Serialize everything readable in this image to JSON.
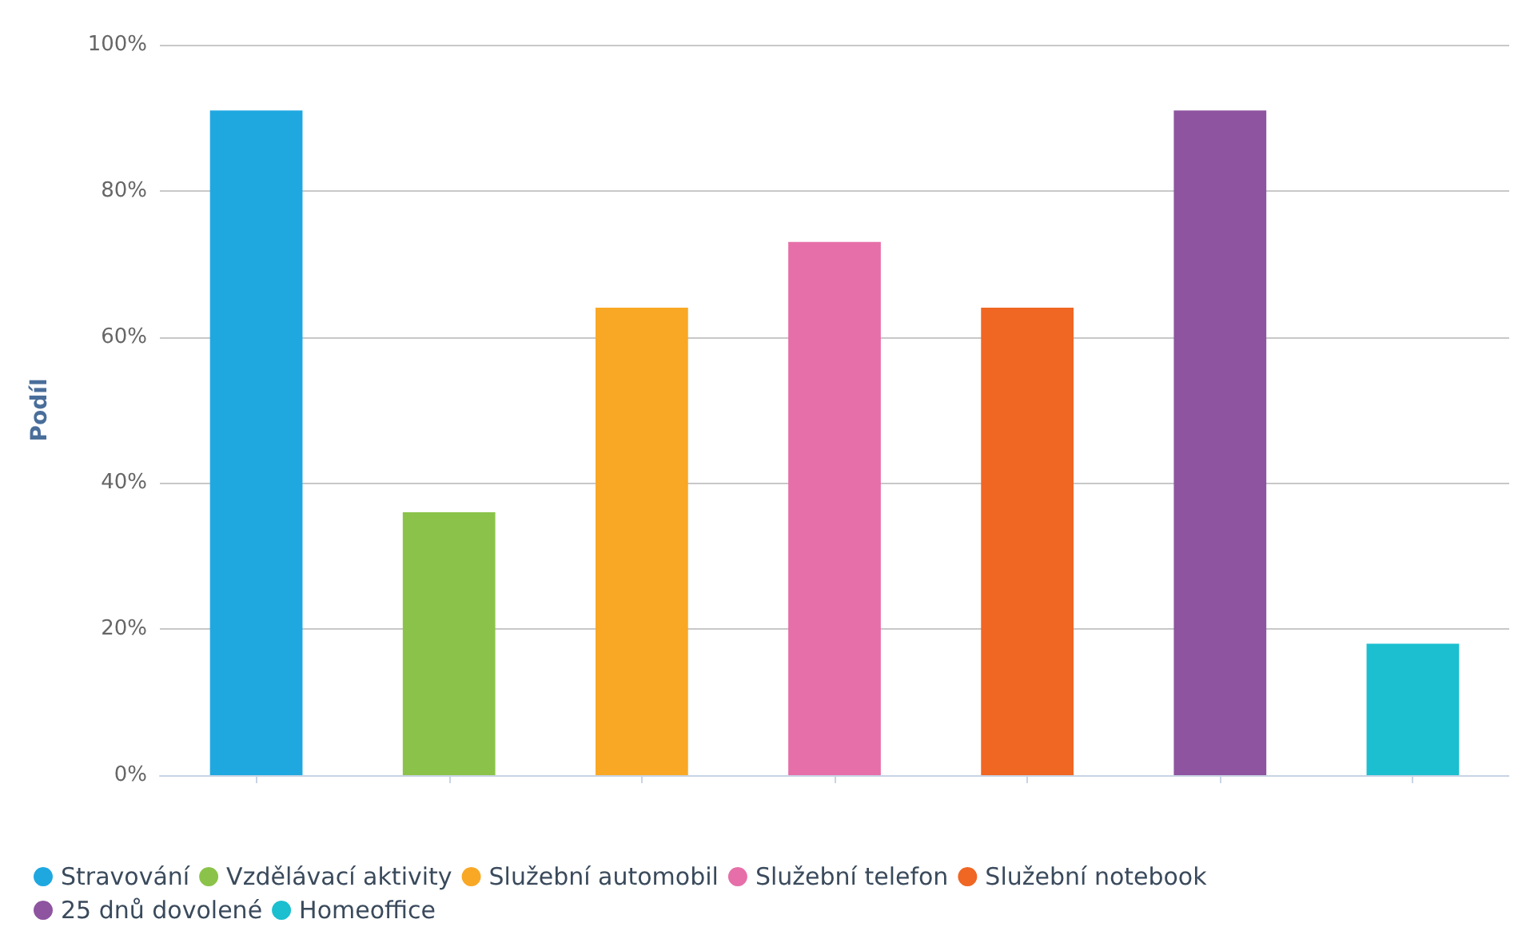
{
  "chart_data": {
    "type": "bar",
    "ylabel": "Podíl",
    "categories": [
      null,
      null,
      null,
      null,
      null,
      null,
      null
    ],
    "series": [
      {
        "name": "Stravování",
        "color": "#1fa8e0",
        "values": [
          91,
          null,
          null,
          null,
          null,
          null,
          null
        ]
      },
      {
        "name": "Vzdělávací aktivity",
        "color": "#8bc34a",
        "values": [
          null,
          36,
          null,
          null,
          null,
          null,
          null
        ]
      },
      {
        "name": "Služební automobil",
        "color": "#f9a825",
        "values": [
          null,
          null,
          64,
          null,
          null,
          null,
          null
        ]
      },
      {
        "name": "Služební telefon",
        "color": "#e66fa9",
        "values": [
          null,
          null,
          null,
          73,
          null,
          null,
          null
        ]
      },
      {
        "name": "Služební notebook",
        "color": "#f06623",
        "values": [
          null,
          null,
          null,
          null,
          64,
          null,
          null
        ]
      },
      {
        "name": "25 dnů dovolené",
        "color": "#8e54a0",
        "values": [
          null,
          null,
          null,
          null,
          null,
          91,
          null
        ]
      },
      {
        "name": "Homeoffice",
        "color": "#1bbfcf",
        "values": [
          null,
          null,
          null,
          null,
          null,
          null,
          18
        ]
      }
    ],
    "ylim": [
      0,
      100
    ],
    "yticks": [
      {
        "value": 0,
        "label": "0%"
      },
      {
        "value": 20,
        "label": "20%"
      },
      {
        "value": 40,
        "label": "40%"
      },
      {
        "value": 60,
        "label": "60%"
      },
      {
        "value": 80,
        "label": "80%"
      },
      {
        "value": 100,
        "label": "100%"
      }
    ],
    "grid": "y",
    "legend": "bottom left"
  }
}
